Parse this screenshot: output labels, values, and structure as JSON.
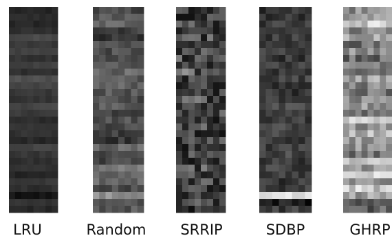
{
  "chart_data": {
    "type": "heatmap",
    "title": "",
    "xlabel": "",
    "ylabel": "",
    "colormap": "grayscale",
    "value_range": [
      0,
      1
    ],
    "grid_rows": 30,
    "grid_cols": 8,
    "policies": [
      {
        "name": "LRU",
        "row_brightness": [
          0.14,
          0.17,
          0.15,
          0.18,
          0.28,
          0.22,
          0.26,
          0.2,
          0.25,
          0.19,
          0.31,
          0.26,
          0.22,
          0.2,
          0.27,
          0.23,
          0.17,
          0.21,
          0.19,
          0.16,
          0.27,
          0.21,
          0.18,
          0.2,
          0.15,
          0.21,
          0.18,
          0.08,
          0.19,
          0.16
        ]
      },
      {
        "name": "Random",
        "row_brightness": [
          0.27,
          0.34,
          0.4,
          0.25,
          0.22,
          0.33,
          0.3,
          0.26,
          0.36,
          0.4,
          0.34,
          0.38,
          0.33,
          0.3,
          0.36,
          0.28,
          0.32,
          0.3,
          0.26,
          0.22,
          0.4,
          0.3,
          0.28,
          0.47,
          0.36,
          0.4,
          0.31,
          0.55,
          0.3,
          0.34
        ]
      },
      {
        "name": "SRRIP",
        "row_brightness": [
          0.2,
          0.18,
          0.24,
          0.15,
          0.22,
          0.18,
          0.2,
          0.23,
          0.16,
          0.28,
          0.2,
          0.17,
          0.22,
          0.25,
          0.18,
          0.21,
          0.15,
          0.24,
          0.19,
          0.23,
          0.17,
          0.21,
          0.16,
          0.27,
          0.2,
          0.22,
          0.18,
          0.16,
          0.2,
          0.14
        ]
      },
      {
        "name": "SDBP",
        "row_brightness": [
          0.2,
          0.22,
          0.24,
          0.21,
          0.23,
          0.2,
          0.26,
          0.22,
          0.24,
          0.21,
          0.26,
          0.23,
          0.2,
          0.25,
          0.27,
          0.22,
          0.24,
          0.28,
          0.25,
          0.22,
          0.24,
          0.27,
          0.23,
          0.25,
          0.26,
          0.22,
          0.24,
          0.9,
          0.12,
          0.24
        ]
      },
      {
        "name": "GHRP",
        "row_brightness": [
          0.55,
          0.62,
          0.8,
          0.5,
          0.68,
          0.45,
          0.6,
          0.42,
          0.55,
          0.48,
          0.62,
          0.52,
          0.45,
          0.5,
          0.58,
          0.47,
          0.86,
          0.55,
          0.7,
          0.62,
          0.55,
          0.48,
          0.72,
          0.62,
          0.8,
          0.55,
          0.78,
          0.62,
          0.42,
          0.36
        ]
      }
    ]
  }
}
